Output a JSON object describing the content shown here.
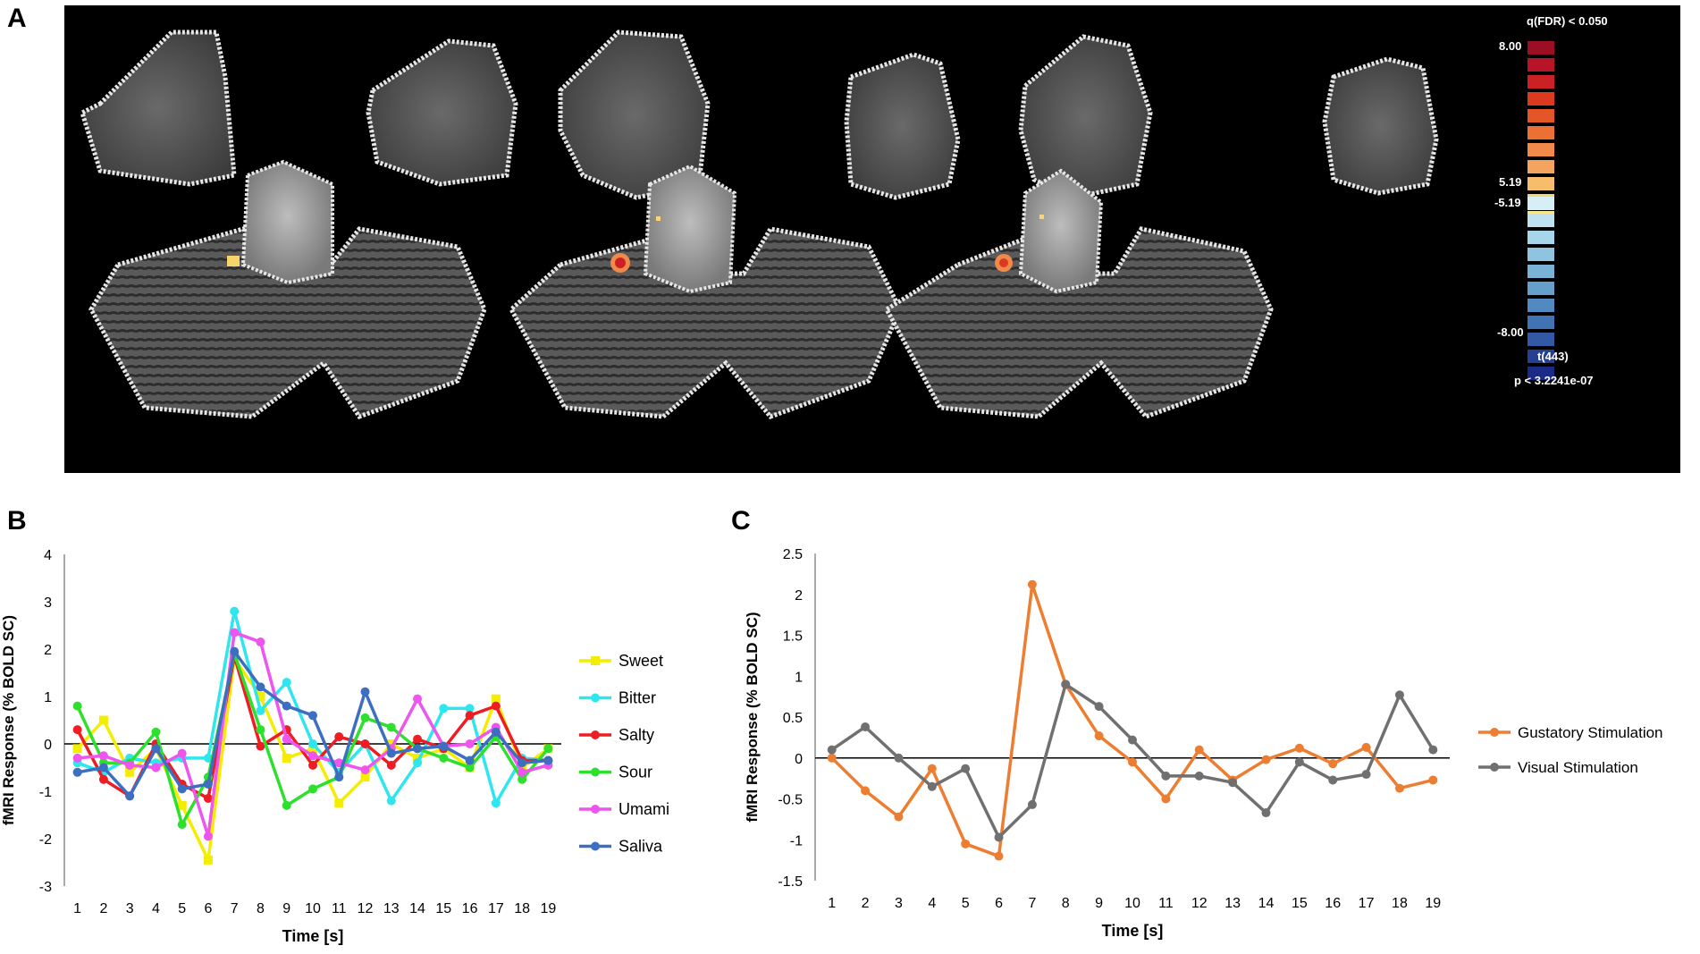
{
  "panels": {
    "a_label": "A",
    "b_label": "B",
    "c_label": "C"
  },
  "colorbar": {
    "header": "q(FDR) < 0.050",
    "max": "8.00",
    "pos_thresh": "5.19",
    "neg_thresh": "-5.19",
    "min": "-8.00",
    "stat": "t(443)",
    "pval": "p < 3.2241e-07",
    "pos_colors": [
      "#9c0e23",
      "#b71428",
      "#cc2124",
      "#db3a1f",
      "#e45527",
      "#ec7033",
      "#f0894a",
      "#f4a45e",
      "#f6bd6d",
      "#f8d579",
      "#f9e88b"
    ],
    "neg_colors": [
      "#d8eef6",
      "#bfe2f0",
      "#a7d5ea",
      "#8fc4e0",
      "#7ab2d6",
      "#659fcc",
      "#5289c0",
      "#4172b3",
      "#3259a3",
      "#253f93",
      "#1b2b85"
    ]
  },
  "chart_data": [
    {
      "type": "line",
      "panel": "B",
      "title": "",
      "xlabel": "Time [s]",
      "ylabel": "fMRI Response (% BOLD SC)",
      "ylim": [
        -3,
        4
      ],
      "yticks": [
        -3,
        -2,
        -1,
        0,
        1,
        2,
        3,
        4
      ],
      "x": [
        1,
        2,
        3,
        4,
        5,
        6,
        7,
        8,
        9,
        10,
        11,
        12,
        13,
        14,
        15,
        16,
        17,
        18,
        19
      ],
      "legend_position": "right",
      "series": [
        {
          "name": "Sweet",
          "color": "#f5ed00",
          "marker": "square",
          "values": [
            -0.1,
            0.5,
            -0.6,
            -0.1,
            -1.3,
            -2.45,
            1.8,
            1.0,
            -0.3,
            -0.1,
            -1.25,
            -0.7,
            0.0,
            -0.3,
            -0.1,
            -0.5,
            0.95,
            -0.5,
            -0.1
          ]
        },
        {
          "name": "Bitter",
          "color": "#2ee6ee",
          "marker": "circle",
          "values": [
            -0.4,
            -0.6,
            -0.3,
            -0.4,
            -0.3,
            -0.3,
            2.8,
            0.7,
            1.3,
            0.0,
            -0.6,
            0.0,
            -1.2,
            -0.4,
            0.75,
            0.75,
            -1.25,
            -0.3,
            -0.35
          ]
        },
        {
          "name": "Salty",
          "color": "#ee1d23",
          "marker": "circle",
          "values": [
            0.3,
            -0.75,
            -1.1,
            0.0,
            -0.85,
            -1.15,
            1.85,
            -0.05,
            0.3,
            -0.45,
            0.15,
            0.0,
            -0.45,
            0.1,
            -0.1,
            0.6,
            0.8,
            -0.35,
            -0.35
          ]
        },
        {
          "name": "Sour",
          "color": "#2ee02e",
          "marker": "circle",
          "values": [
            0.8,
            -0.4,
            -0.4,
            0.25,
            -1.7,
            -0.7,
            1.9,
            0.3,
            -1.3,
            -0.95,
            -0.7,
            0.55,
            0.35,
            -0.1,
            -0.3,
            -0.5,
            0.15,
            -0.75,
            -0.1
          ]
        },
        {
          "name": "Umami",
          "color": "#ee55ee",
          "marker": "circle",
          "values": [
            -0.3,
            -0.25,
            -0.45,
            -0.5,
            -0.2,
            -1.95,
            2.35,
            2.15,
            0.1,
            -0.25,
            -0.4,
            -0.55,
            -0.1,
            0.95,
            -0.05,
            0.0,
            0.35,
            -0.6,
            -0.45
          ]
        },
        {
          "name": "Saliva",
          "color": "#3c6ec1",
          "marker": "circle",
          "values": [
            -0.6,
            -0.5,
            -1.1,
            -0.1,
            -0.95,
            -0.85,
            1.95,
            1.2,
            0.8,
            0.6,
            -0.7,
            1.1,
            -0.2,
            -0.1,
            -0.05,
            -0.35,
            0.25,
            -0.4,
            -0.35
          ]
        }
      ]
    },
    {
      "type": "line",
      "panel": "C",
      "title": "",
      "xlabel": "Time [s]",
      "ylabel": "fMRI Response (% BOLD SC)",
      "ylim": [
        -1.5,
        2.5
      ],
      "yticks": [
        -1.5,
        -1,
        -0.5,
        0,
        0.5,
        1,
        1.5,
        2,
        2.5
      ],
      "x": [
        1,
        2,
        3,
        4,
        5,
        6,
        7,
        8,
        9,
        10,
        11,
        12,
        13,
        14,
        15,
        16,
        17,
        18,
        19
      ],
      "legend_position": "right",
      "series": [
        {
          "name": "Gustatory Stimulation",
          "color": "#ed7d31",
          "marker": "circle",
          "values": [
            0.0,
            -0.4,
            -0.72,
            -0.13,
            -1.05,
            -1.2,
            2.12,
            0.9,
            0.27,
            -0.05,
            -0.5,
            0.1,
            -0.27,
            -0.02,
            0.12,
            -0.07,
            0.13,
            -0.37,
            -0.27
          ]
        },
        {
          "name": "Visual Stimulation",
          "color": "#707070",
          "marker": "circle",
          "values": [
            0.1,
            0.38,
            0.0,
            -0.35,
            -0.13,
            -0.97,
            -0.57,
            0.9,
            0.63,
            0.22,
            -0.22,
            -0.22,
            -0.3,
            -0.67,
            -0.05,
            -0.27,
            -0.2,
            0.77,
            0.1
          ]
        }
      ]
    }
  ]
}
